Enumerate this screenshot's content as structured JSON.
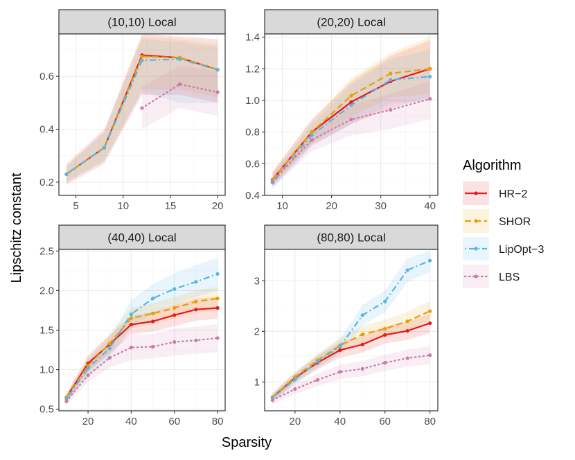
{
  "chart_data": {
    "type": "line",
    "ylabel": "Lipschitz constant",
    "xlabel": "Sparsity",
    "legend": {
      "title": "Algorithm",
      "placement": "right",
      "entries": [
        {
          "name": "HR−2",
          "color": "#e41a1c",
          "dash": "solid"
        },
        {
          "name": "SHOR",
          "color": "#e69f00",
          "dash": "dashed"
        },
        {
          "name": "LipOpt−3",
          "color": "#56b4e9",
          "dash": "dotdash"
        },
        {
          "name": "LBS",
          "color": "#cc79a7",
          "dash": "dotted"
        }
      ]
    },
    "grid": true,
    "panels": [
      {
        "title": "(10,10) Local",
        "xlim": [
          3.2,
          20.8
        ],
        "ylim": [
          0.15,
          0.76
        ],
        "xticks": [
          5,
          10,
          15,
          20
        ],
        "yticks": [
          0.2,
          0.4,
          0.6
        ],
        "ytick_labels": [
          "0.2",
          "0.4",
          "0.6"
        ],
        "series": [
          {
            "name": "HR−2",
            "x": [
              4,
              8,
              12,
              16,
              20
            ],
            "y": [
              0.23,
              0.33,
              0.68,
              0.67,
              0.625
            ],
            "lo": [
              0.19,
              0.27,
              0.53,
              0.53,
              0.5
            ],
            "hi": [
              0.27,
              0.4,
              0.76,
              0.75,
              0.74
            ]
          },
          {
            "name": "SHOR",
            "x": [
              4,
              8,
              12,
              16,
              20
            ],
            "y": [
              0.23,
              0.33,
              0.675,
              0.67,
              0.625
            ],
            "lo": [
              0.2,
              0.28,
              0.55,
              0.55,
              0.52
            ],
            "hi": [
              0.26,
              0.39,
              0.75,
              0.74,
              0.72
            ]
          },
          {
            "name": "LipOpt−3",
            "x": [
              4,
              8,
              12,
              16,
              20
            ],
            "y": [
              0.23,
              0.33,
              0.66,
              0.665,
              0.625
            ],
            "lo": [
              0.2,
              0.28,
              0.54,
              0.5,
              0.5
            ],
            "hi": [
              0.26,
              0.39,
              0.74,
              0.73,
              0.71
            ]
          },
          {
            "name": "LBS",
            "x": [
              12,
              16,
              20
            ],
            "y": [
              0.48,
              0.57,
              0.54
            ],
            "lo": [
              0.4,
              0.48,
              0.45
            ],
            "hi": [
              0.56,
              0.64,
              0.62
            ]
          }
        ]
      },
      {
        "title": "(20,20) Local",
        "xlim": [
          6.4,
          41.6
        ],
        "ylim": [
          0.4,
          1.42
        ],
        "xticks": [
          10,
          20,
          30,
          40
        ],
        "yticks": [
          0.4,
          0.6,
          0.8,
          1.0,
          1.2,
          1.4
        ],
        "ytick_labels": [
          "0.4",
          "0.6",
          "0.8",
          "1.0",
          "1.2",
          "1.4"
        ],
        "series": [
          {
            "name": "HR−2",
            "x": [
              8,
              16,
              24,
              32,
              40
            ],
            "y": [
              0.5,
              0.8,
              0.99,
              1.12,
              1.2
            ],
            "lo": [
              0.46,
              0.72,
              0.85,
              0.95,
              1.02
            ],
            "hi": [
              0.55,
              0.88,
              1.12,
              1.28,
              1.38
            ]
          },
          {
            "name": "SHOR",
            "x": [
              8,
              16,
              24,
              32,
              40
            ],
            "y": [
              0.5,
              0.8,
              1.03,
              1.17,
              1.2
            ],
            "lo": [
              0.46,
              0.73,
              0.9,
              1.02,
              1.04
            ],
            "hi": [
              0.55,
              0.87,
              1.14,
              1.3,
              1.4
            ]
          },
          {
            "name": "LipOpt−3",
            "x": [
              8,
              16,
              24,
              32,
              40
            ],
            "y": [
              0.48,
              0.78,
              0.97,
              1.13,
              1.15
            ],
            "lo": [
              0.44,
              0.71,
              0.85,
              0.98,
              1.0
            ],
            "hi": [
              0.53,
              0.85,
              1.1,
              1.26,
              1.32
            ]
          },
          {
            "name": "LBS",
            "x": [
              8,
              16,
              24,
              32,
              40
            ],
            "y": [
              0.49,
              0.75,
              0.88,
              0.94,
              1.01
            ],
            "lo": [
              0.45,
              0.68,
              0.78,
              0.82,
              0.88
            ],
            "hi": [
              0.53,
              0.81,
              0.97,
              1.04,
              1.12
            ]
          }
        ]
      },
      {
        "title": "(40,40) Local",
        "xlim": [
          6.5,
          83.5
        ],
        "ylim": [
          0.48,
          2.52
        ],
        "xticks": [
          20,
          40,
          60,
          80
        ],
        "yticks": [
          0.5,
          1.0,
          1.5,
          2.0,
          2.5
        ],
        "ytick_labels": [
          "0.5",
          "1.0",
          "1.5",
          "2.0",
          "2.5"
        ],
        "series": [
          {
            "name": "HR−2",
            "x": [
              10,
              20,
              30,
              40,
              50,
              60,
              70,
              80
            ],
            "y": [
              0.65,
              1.08,
              1.32,
              1.57,
              1.61,
              1.69,
              1.76,
              1.78
            ],
            "lo": [
              0.6,
              0.98,
              1.2,
              1.45,
              1.48,
              1.55,
              1.62,
              1.64
            ],
            "hi": [
              0.7,
              1.18,
              1.44,
              1.68,
              1.73,
              1.82,
              1.9,
              1.92
            ]
          },
          {
            "name": "SHOR",
            "x": [
              10,
              20,
              30,
              40,
              50,
              60,
              70,
              80
            ],
            "y": [
              0.65,
              1.05,
              1.33,
              1.65,
              1.71,
              1.78,
              1.86,
              1.9
            ],
            "lo": [
              0.6,
              0.96,
              1.22,
              1.52,
              1.58,
              1.64,
              1.72,
              1.75
            ],
            "hi": [
              0.7,
              1.15,
              1.45,
              1.78,
              1.84,
              1.92,
              2.0,
              2.05
            ]
          },
          {
            "name": "LipOpt−3",
            "x": [
              10,
              20,
              30,
              40,
              50,
              60,
              70,
              80
            ],
            "y": [
              0.63,
              1.02,
              1.27,
              1.7,
              1.9,
              2.02,
              2.11,
              2.21
            ],
            "lo": [
              0.58,
              0.93,
              1.15,
              1.52,
              1.72,
              1.82,
              1.92,
              2.0
            ],
            "hi": [
              0.68,
              1.12,
              1.4,
              1.88,
              2.08,
              2.22,
              2.32,
              2.42
            ]
          },
          {
            "name": "LBS",
            "x": [
              10,
              20,
              30,
              40,
              50,
              60,
              70,
              80
            ],
            "y": [
              0.6,
              0.93,
              1.15,
              1.28,
              1.29,
              1.35,
              1.37,
              1.4
            ],
            "lo": [
              0.55,
              0.84,
              1.03,
              1.12,
              1.14,
              1.18,
              1.2,
              1.22
            ],
            "hi": [
              0.65,
              1.02,
              1.27,
              1.44,
              1.45,
              1.52,
              1.54,
              1.58
            ]
          }
        ]
      },
      {
        "title": "(80,80) Local",
        "xlim": [
          6.5,
          83.5
        ],
        "ylim": [
          0.43,
          3.62
        ],
        "xticks": [
          20,
          40,
          60,
          80
        ],
        "yticks": [
          1,
          2,
          3
        ],
        "ytick_labels": [
          "1",
          "2",
          "3"
        ],
        "series": [
          {
            "name": "HR−2",
            "x": [
              10,
              20,
              30,
              40,
              50,
              60,
              70,
              80
            ],
            "y": [
              0.7,
              1.08,
              1.38,
              1.63,
              1.74,
              1.93,
              2.01,
              2.16
            ],
            "lo": [
              0.62,
              0.98,
              1.25,
              1.48,
              1.58,
              1.76,
              1.83,
              1.97
            ],
            "hi": [
              0.78,
              1.18,
              1.52,
              1.78,
              1.9,
              2.1,
              2.19,
              2.35
            ]
          },
          {
            "name": "SHOR",
            "x": [
              10,
              20,
              30,
              40,
              50,
              60,
              70,
              80
            ],
            "y": [
              0.7,
              1.1,
              1.43,
              1.72,
              1.94,
              2.05,
              2.2,
              2.4
            ],
            "lo": [
              0.62,
              1.0,
              1.3,
              1.57,
              1.77,
              1.87,
              2.01,
              2.2
            ],
            "hi": [
              0.78,
              1.2,
              1.56,
              1.87,
              2.11,
              2.23,
              2.39,
              2.6
            ]
          },
          {
            "name": "LipOpt−3",
            "x": [
              10,
              20,
              30,
              40,
              50,
              60,
              70,
              80
            ],
            "y": [
              0.69,
              1.05,
              1.4,
              1.7,
              2.32,
              2.59,
              3.21,
              3.4
            ],
            "lo": [
              0.61,
              0.95,
              1.27,
              1.55,
              2.12,
              2.37,
              2.98,
              3.17
            ],
            "hi": [
              0.77,
              1.15,
              1.53,
              1.85,
              2.52,
              2.81,
              3.44,
              3.6
            ]
          },
          {
            "name": "LBS",
            "x": [
              10,
              20,
              30,
              40,
              50,
              60,
              70,
              80
            ],
            "y": [
              0.64,
              0.86,
              1.04,
              1.2,
              1.26,
              1.38,
              1.47,
              1.53
            ],
            "lo": [
              0.56,
              0.76,
              0.92,
              1.06,
              1.11,
              1.22,
              1.3,
              1.35
            ],
            "hi": [
              0.72,
              0.96,
              1.16,
              1.34,
              1.41,
              1.54,
              1.64,
              1.71
            ]
          }
        ]
      }
    ]
  }
}
